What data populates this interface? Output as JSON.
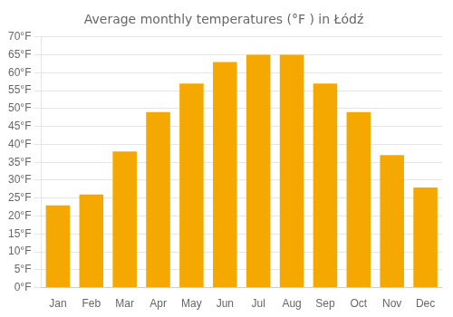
{
  "chart_data": {
    "type": "bar",
    "title": "Average monthly temperatures (°F ) in Łódź",
    "categories": [
      "Jan",
      "Feb",
      "Mar",
      "Apr",
      "May",
      "Jun",
      "Jul",
      "Aug",
      "Sep",
      "Oct",
      "Nov",
      "Dec"
    ],
    "values": [
      23,
      26,
      38,
      49,
      57,
      63,
      65,
      65,
      57,
      49,
      37,
      28
    ],
    "color": "#F5A800",
    "ylim": [
      0,
      70
    ],
    "yticks": [
      {
        "value": 0,
        "label": "0°F"
      },
      {
        "value": 5,
        "label": "5°F"
      },
      {
        "value": 10,
        "label": "10°F"
      },
      {
        "value": 15,
        "label": "15°F"
      },
      {
        "value": 20,
        "label": "20°F"
      },
      {
        "value": 25,
        "label": "25°F"
      },
      {
        "value": 30,
        "label": "30°F"
      },
      {
        "value": 35,
        "label": "35°F"
      },
      {
        "value": 40,
        "label": "40°F"
      },
      {
        "value": 45,
        "label": "45°F"
      },
      {
        "value": 50,
        "label": "50°F"
      },
      {
        "value": 55,
        "label": "55°F"
      },
      {
        "value": 60,
        "label": "60°F"
      },
      {
        "value": 65,
        "label": "65°F"
      },
      {
        "value": 70,
        "label": "70°F"
      }
    ],
    "grid": true
  }
}
